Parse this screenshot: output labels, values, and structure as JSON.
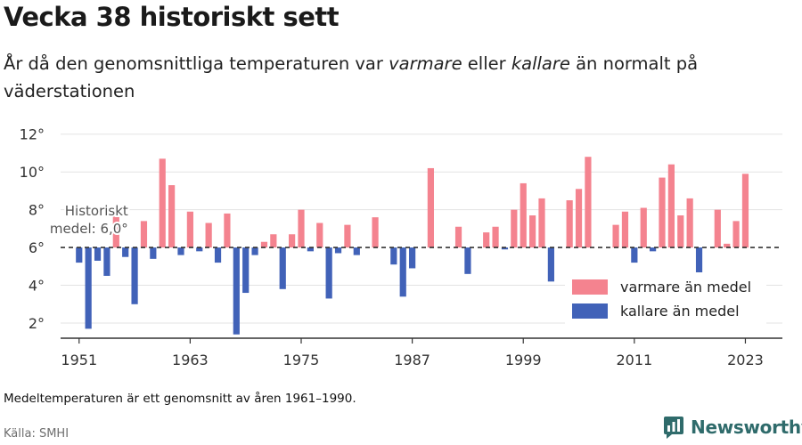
{
  "title": "Vecka 38 historiskt sett",
  "subtitle": {
    "part1": "År då den genomsnittliga temperaturen var ",
    "warm_word": "varmare",
    "part2": " eller ",
    "cold_word": "kallare",
    "part3": " än normalt på väderstationen"
  },
  "footnote": "Medeltemperaturen är ett genomsnitt av åren 1961–1990.",
  "source": "Källa: SMHI",
  "brand": {
    "name": "Newsworthy",
    "logo_icon": "newsworthy-logo-icon",
    "color": "#2f6b6b"
  },
  "chart_data": {
    "type": "bar",
    "baseline": 6.0,
    "baseline_label_line1": "Historiskt",
    "baseline_label_line2": "medel: 6,0°",
    "ylim": [
      1.2,
      12.6
    ],
    "xlim": [
      1949,
      2027
    ],
    "yticks": [
      2,
      4,
      6,
      8,
      10,
      12
    ],
    "ytick_labels": [
      "2°",
      "4°",
      "6°",
      "8°",
      "10°",
      "12°"
    ],
    "xticks": [
      1951,
      1963,
      1975,
      1987,
      1999,
      2011,
      2023
    ],
    "xtick_labels": [
      "1951",
      "1963",
      "1975",
      "1987",
      "1999",
      "2011",
      "2023"
    ],
    "grid": true,
    "legend_position": "bottom-right",
    "colors": {
      "warmer": "#f4838f",
      "colder": "#4162b8",
      "grid": "#e3e3e3",
      "baseline": "#333333"
    },
    "legend": [
      {
        "key": "warmer",
        "label": "varmare än medel"
      },
      {
        "key": "colder",
        "label": "kallare än medel"
      }
    ],
    "years": [
      1951,
      1952,
      1953,
      1954,
      1955,
      1956,
      1957,
      1958,
      1959,
      1960,
      1961,
      1962,
      1963,
      1964,
      1965,
      1966,
      1967,
      1968,
      1969,
      1970,
      1971,
      1972,
      1973,
      1974,
      1975,
      1976,
      1977,
      1978,
      1979,
      1980,
      1981,
      1982,
      1983,
      1984,
      1985,
      1986,
      1987,
      1988,
      1989,
      1990,
      1991,
      1992,
      1993,
      1994,
      1995,
      1996,
      1997,
      1998,
      1999,
      2000,
      2001,
      2002,
      2003,
      2004,
      2005,
      2006,
      2007,
      2008,
      2009,
      2010,
      2011,
      2012,
      2013,
      2014,
      2015,
      2016,
      2017,
      2018,
      2019,
      2020,
      2021,
      2022,
      2023
    ],
    "values": [
      5.2,
      1.7,
      5.3,
      4.5,
      7.7,
      5.5,
      3.0,
      7.4,
      5.4,
      10.7,
      9.3,
      5.6,
      7.9,
      5.8,
      7.3,
      5.2,
      7.8,
      1.4,
      3.6,
      5.6,
      6.3,
      6.7,
      3.8,
      6.7,
      8.0,
      5.8,
      7.3,
      3.3,
      5.7,
      7.2,
      5.6,
      6.0,
      7.6,
      6.0,
      5.1,
      3.4,
      4.9,
      6.0,
      10.2,
      6.0,
      6.0,
      7.1,
      4.6,
      6.0,
      6.8,
      7.1,
      5.9,
      8.0,
      9.4,
      7.7,
      8.6,
      4.2,
      6.0,
      8.5,
      9.1,
      10.8,
      6.0,
      6.0,
      7.2,
      7.9,
      5.2,
      8.1,
      5.8,
      9.7,
      10.4,
      7.7,
      8.6,
      4.6,
      6.0,
      8.0,
      6.2,
      7.4,
      9.9
    ]
  }
}
